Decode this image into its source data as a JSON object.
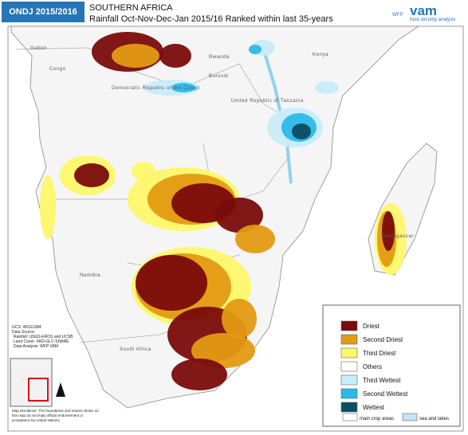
{
  "header": {
    "badge": "ONDJ 2015/2016",
    "title": "SOUTHERN AFRICA",
    "subtitle": "Rainfall Oct-Nov-Dec-Jan 2015/16 Ranked within last 35-years"
  },
  "logo": {
    "agency": "WFP",
    "brand": "vam",
    "tagline": "food security analysis"
  },
  "labels": [
    {
      "text": "Gabon"
    },
    {
      "text": "Congo"
    },
    {
      "text": "Kenya"
    },
    {
      "text": "Rwanda"
    },
    {
      "text": "Burundi"
    },
    {
      "text": "Democratic Republic of the Congo"
    },
    {
      "text": "United Republic of Tanzania"
    },
    {
      "text": "Namibia"
    },
    {
      "text": "South Africa"
    },
    {
      "text": "Madagascar"
    }
  ],
  "legend": {
    "items": [
      {
        "label": "Driest",
        "color": "#7a0b0b"
      },
      {
        "label": "Second Driest",
        "color": "#e39a12"
      },
      {
        "label": "Third Driest",
        "color": "#fdf76a"
      },
      {
        "label": "Others",
        "color": "#ffffff"
      },
      {
        "label": "Third Wettest",
        "color": "#c8ecfa"
      },
      {
        "label": "Second Wettest",
        "color": "#2cb9e8"
      },
      {
        "label": "Wettest",
        "color": "#0b4d62"
      }
    ],
    "extra": [
      {
        "label": "main crop areas"
      },
      {
        "label": "sea and lakes"
      }
    ]
  },
  "notes": [
    "GCS: WGS1984",
    "Data Source:",
    "Rainfall: USGS-EROS and UCSB",
    "Land Cover: FAO-GLC-SHARE",
    "Data Analysis: WFP VAM"
  ],
  "disclaimer": "Map Disclaimer: The boundaries and names shown on this map do not imply official endorsement or acceptance by United Nations"
}
